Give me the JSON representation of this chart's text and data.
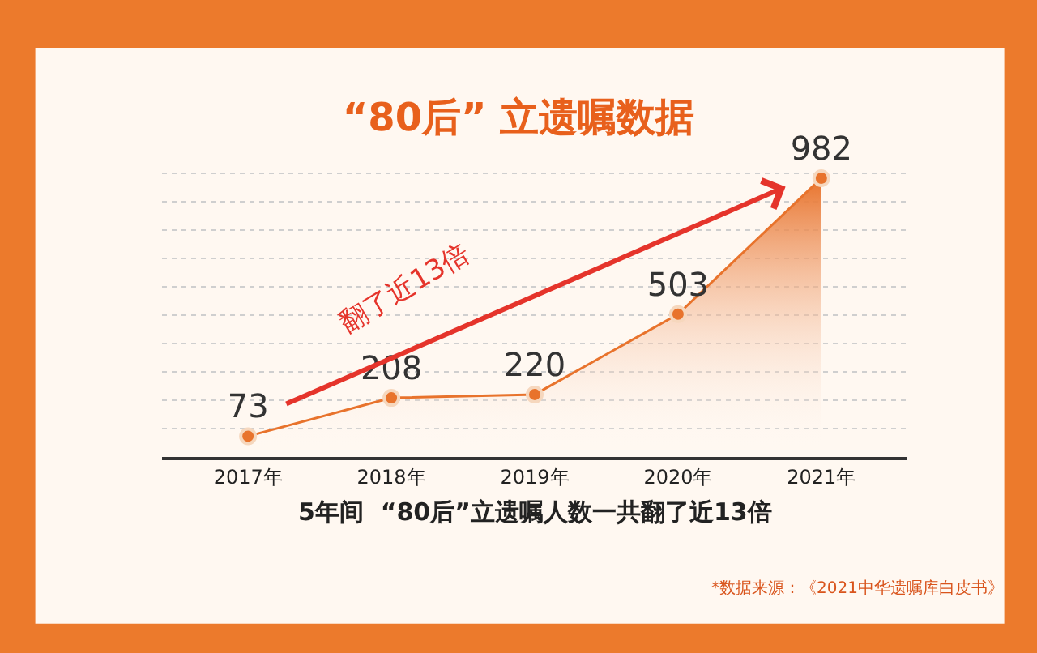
{
  "chart_data": {
    "type": "area",
    "title": "“80后” 立遗嘱数据",
    "categories": [
      "2017年",
      "2018年",
      "2019年",
      "2020年",
      "2021年"
    ],
    "values": [
      73,
      208,
      220,
      503,
      982
    ],
    "color": "#e8732c",
    "data_labels": true,
    "marker": "circle",
    "grid": "y",
    "tick_labels": "x",
    "annotations": [
      "翻了近13倍",
      "5年间  “80后”立遗嘱人数一共翻了近13倍",
      "*数据来源：《2021中华遗嘱库白皮书》"
    ]
  }
}
